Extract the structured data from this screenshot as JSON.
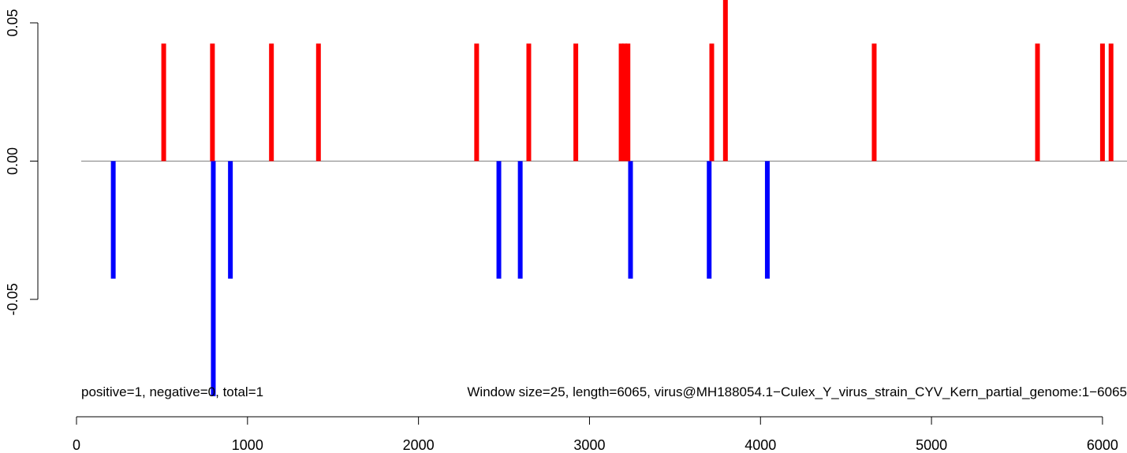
{
  "chart_data": {
    "type": "bar",
    "title": "",
    "xlabel": "",
    "ylabel": "",
    "xlim": [
      0,
      6065
    ],
    "ylim": [
      -0.085,
      0.058
    ],
    "x_ticks": [
      "0",
      "1000",
      "2000",
      "3000",
      "4000",
      "5000",
      "6000"
    ],
    "y_ticks": [
      "0.05",
      "0.00",
      "-0.05"
    ],
    "y_tick_values": [
      0.05,
      0,
      -0.05
    ],
    "grid": false,
    "legend": "none",
    "series": [
      {
        "color": "#ff0000",
        "x": [
          510,
          795,
          1140,
          1415,
          2340,
          2645,
          2920,
          3185,
          3205,
          3225,
          3715,
          3795,
          4665,
          5620,
          6000,
          6050
        ],
        "y": [
          0.0425,
          0.0425,
          0.0425,
          0.0425,
          0.0425,
          0.0425,
          0.0425,
          0.0425,
          0.0425,
          0.0425,
          0.0425,
          0.06,
          0.0425,
          0.0425,
          0.0425,
          0.0425
        ]
      },
      {
        "color": "#0000ff",
        "x": [
          215,
          800,
          900,
          2470,
          2595,
          3240,
          3700,
          4040
        ],
        "y": [
          -0.0425,
          -0.085,
          -0.0425,
          -0.0425,
          -0.0425,
          -0.0425,
          -0.0425,
          -0.0425
        ]
      }
    ],
    "baseline_color": "#808080",
    "annotations": {
      "left": "positive=1, negative=0, total=1",
      "right": "Window size=25, length=6065, virus@MH188054.1−Culex_Y_virus_strain_CYV_Kern_partial_genome:1−6065"
    }
  }
}
